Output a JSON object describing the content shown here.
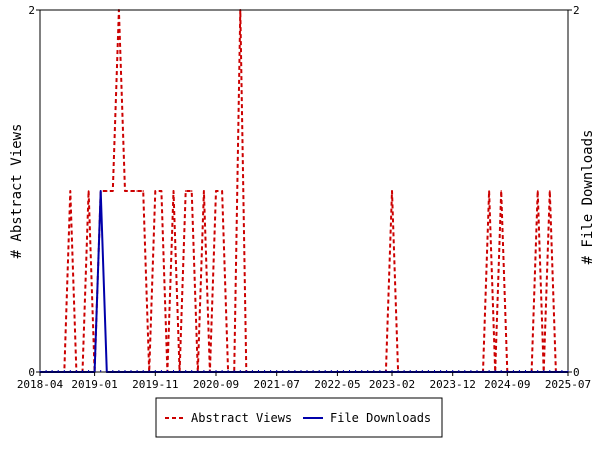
{
  "chart_data": {
    "type": "line",
    "ylabel_left": "# Abstract Views",
    "ylabel_right": "# File Downloads",
    "x_tick_labels": [
      "2018-04",
      "2019-01",
      "2019-11",
      "2020-09",
      "2021-07",
      "2022-05",
      "2023-02",
      "2023-12",
      "2024-09",
      "2025-07"
    ],
    "xlim": [
      "2018-04",
      "2025-07"
    ],
    "ylim_left": [
      0,
      2
    ],
    "ylim_right": [
      0,
      2
    ],
    "y_tick_labels_left": [
      "0",
      "2"
    ],
    "y_tick_labels_right": [
      "0",
      "2"
    ],
    "legend_position": "bottom-center",
    "grid": false,
    "series": [
      {
        "name": "Abstract Views",
        "color": "#cc0000",
        "style": "dashed",
        "axis": "left",
        "points": [
          [
            "2018-04",
            0
          ],
          [
            "2018-08",
            0
          ],
          [
            "2018-09",
            1
          ],
          [
            "2018-10",
            0
          ],
          [
            "2018-11",
            0
          ],
          [
            "2018-12",
            1
          ],
          [
            "2019-01",
            0
          ],
          [
            "2019-02",
            1
          ],
          [
            "2019-03",
            1
          ],
          [
            "2019-04",
            1
          ],
          [
            "2019-05",
            2
          ],
          [
            "2019-06",
            1
          ],
          [
            "2019-07",
            1
          ],
          [
            "2019-08",
            1
          ],
          [
            "2019-09",
            1
          ],
          [
            "2019-10",
            0
          ],
          [
            "2019-11",
            1
          ],
          [
            "2019-12",
            1
          ],
          [
            "2020-01",
            0
          ],
          [
            "2020-02",
            1
          ],
          [
            "2020-03",
            0
          ],
          [
            "2020-04",
            1
          ],
          [
            "2020-05",
            1
          ],
          [
            "2020-06",
            0
          ],
          [
            "2020-07",
            1
          ],
          [
            "2020-08",
            0
          ],
          [
            "2020-09",
            1
          ],
          [
            "2020-10",
            1
          ],
          [
            "2020-11",
            0
          ],
          [
            "2020-12",
            0
          ],
          [
            "2021-01",
            2
          ],
          [
            "2021-02",
            0
          ],
          [
            "2021-03",
            0
          ],
          [
            "2023-01",
            0
          ],
          [
            "2023-02",
            1
          ],
          [
            "2023-03",
            0
          ],
          [
            "2024-05",
            0
          ],
          [
            "2024-06",
            1
          ],
          [
            "2024-07",
            0
          ],
          [
            "2024-08",
            1
          ],
          [
            "2024-09",
            0
          ],
          [
            "2025-01",
            0
          ],
          [
            "2025-02",
            1
          ],
          [
            "2025-03",
            0
          ],
          [
            "2025-04",
            1
          ],
          [
            "2025-05",
            0
          ],
          [
            "2025-07",
            0
          ]
        ]
      },
      {
        "name": "File Downloads",
        "color": "#0000aa",
        "style": "solid",
        "axis": "right",
        "points": [
          [
            "2018-04",
            0
          ],
          [
            "2019-01",
            0
          ],
          [
            "2019-02",
            1
          ],
          [
            "2019-03",
            0
          ],
          [
            "2025-07",
            0
          ]
        ]
      }
    ]
  }
}
